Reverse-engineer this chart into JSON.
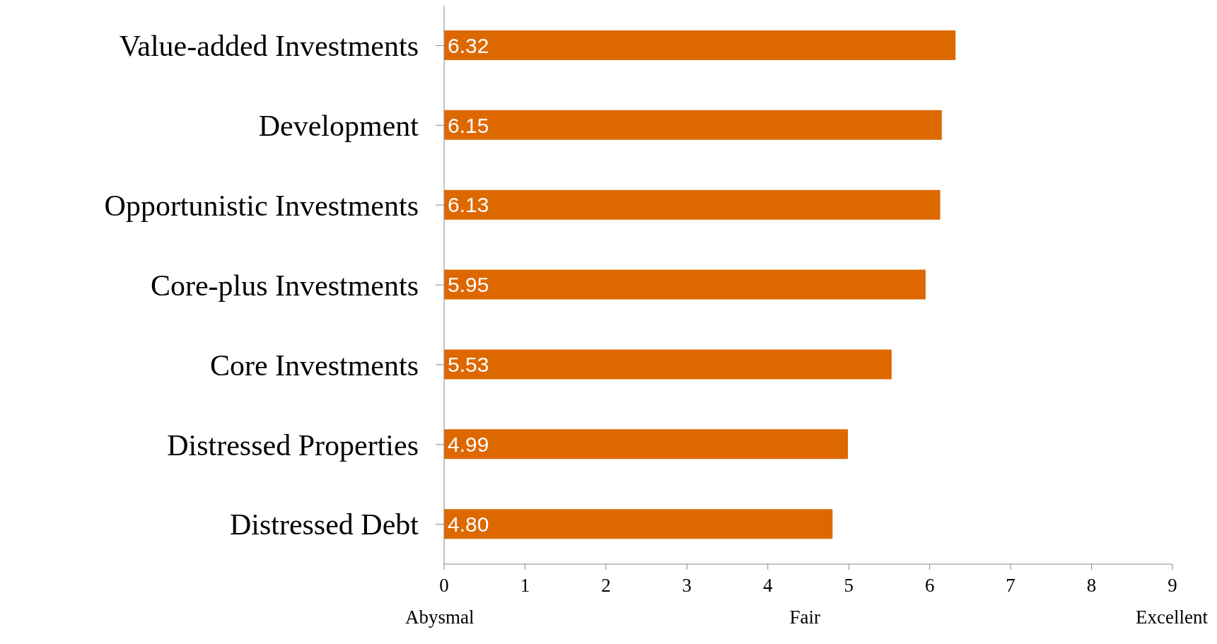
{
  "chart_data": {
    "type": "bar",
    "orientation": "horizontal",
    "categories": [
      "Value-added Investments",
      "Development",
      "Opportunistic Investments",
      "Core-plus Investments",
      "Core Investments",
      "Distressed Properties",
      "Distressed Debt"
    ],
    "values": [
      6.32,
      6.15,
      6.13,
      5.95,
      5.53,
      4.99,
      4.8
    ],
    "value_labels": [
      "6.32",
      "6.15",
      "6.13",
      "5.95",
      "5.53",
      "4.99",
      "4.80"
    ],
    "color": "#dd6800",
    "xlim": [
      0,
      9
    ],
    "xticks": [
      0,
      1,
      2,
      3,
      4,
      5,
      6,
      7,
      8,
      9
    ],
    "grid": false,
    "annotations": [
      "Abysmal",
      "Fair",
      "Excellent"
    ]
  }
}
